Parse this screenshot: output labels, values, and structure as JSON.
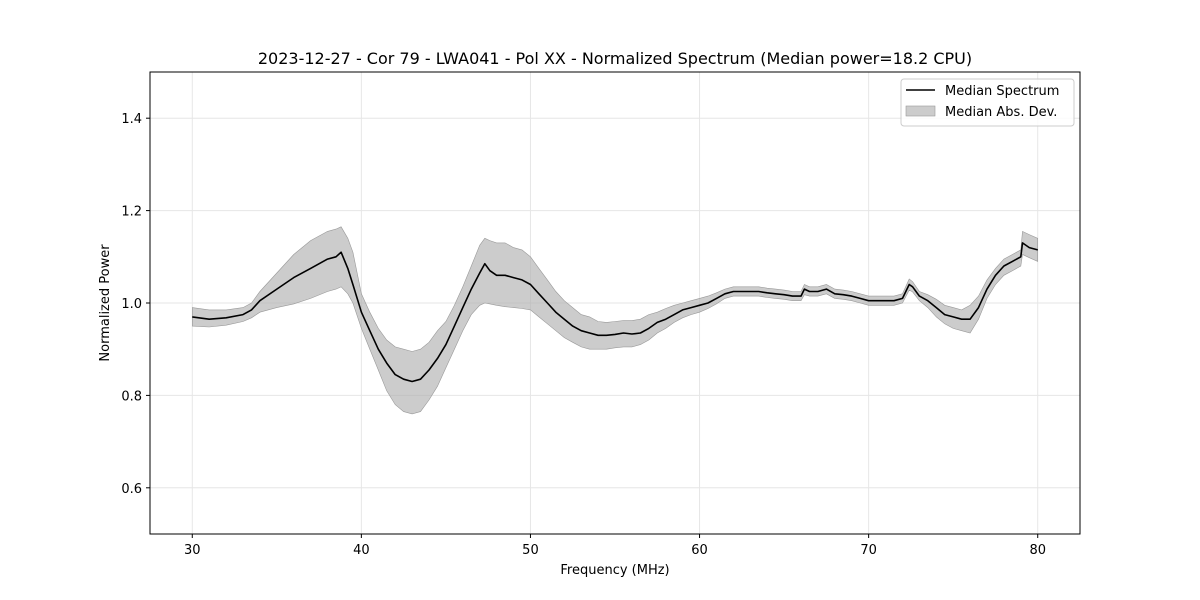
{
  "chart_data": {
    "type": "line",
    "title": "2023-12-27 - Cor 79 - LWA041 - Pol XX - Normalized Spectrum (Median power=18.2 CPU)",
    "xlabel": "Frequency (MHz)",
    "ylabel": "Normalized Power",
    "xlim": [
      27.5,
      82.5
    ],
    "ylim": [
      0.5,
      1.5
    ],
    "xticks": [
      30,
      40,
      50,
      60,
      70,
      80
    ],
    "xtick_labels": [
      "30",
      "40",
      "50",
      "60",
      "70",
      "80"
    ],
    "yticks": [
      0.6,
      0.8,
      1.0,
      1.2,
      1.4
    ],
    "ytick_labels": [
      "0.6",
      "0.8",
      "1.0",
      "1.2",
      "1.4"
    ],
    "grid": true,
    "legend_position": "top-right",
    "colors": {
      "median_line": "#000000",
      "mad_fill": "#b0b0b0",
      "grid": "#e6e6e6",
      "frame": "#000000"
    },
    "series": [
      {
        "name": "Median Spectrum",
        "kind": "line",
        "x": [
          30,
          31,
          32,
          33,
          33.5,
          34,
          35,
          36,
          37,
          38,
          38.5,
          38.8,
          39.2,
          39.5,
          40,
          40.5,
          41,
          41.5,
          42,
          42.5,
          43,
          43.5,
          44,
          44.5,
          45,
          45.5,
          46,
          46.5,
          47,
          47.3,
          47.6,
          48,
          48.5,
          49,
          49.5,
          50,
          50.5,
          51,
          51.5,
          52,
          52.5,
          53,
          53.5,
          54,
          54.5,
          55,
          55.5,
          56,
          56.5,
          57,
          57.5,
          58,
          58.5,
          59,
          59.5,
          60,
          60.5,
          61,
          61.5,
          62,
          62.5,
          63,
          63.5,
          64,
          64.5,
          65,
          65.5,
          66,
          66.2,
          66.5,
          67,
          67.5,
          68,
          68.5,
          69,
          69.5,
          70,
          70.5,
          71,
          71.5,
          72,
          72.4,
          72.6,
          73,
          73.5,
          74,
          74.5,
          75,
          75.5,
          76,
          76.5,
          77,
          77.5,
          78,
          78.5,
          79,
          79.1,
          79.5,
          80
        ],
        "values": [
          0.97,
          0.965,
          0.968,
          0.975,
          0.985,
          1.005,
          1.03,
          1.055,
          1.075,
          1.095,
          1.1,
          1.11,
          1.075,
          1.04,
          0.98,
          0.94,
          0.9,
          0.87,
          0.845,
          0.835,
          0.83,
          0.835,
          0.855,
          0.88,
          0.91,
          0.95,
          0.99,
          1.03,
          1.065,
          1.085,
          1.07,
          1.06,
          1.06,
          1.055,
          1.05,
          1.04,
          1.02,
          1.0,
          0.98,
          0.965,
          0.95,
          0.94,
          0.935,
          0.93,
          0.93,
          0.932,
          0.935,
          0.933,
          0.935,
          0.945,
          0.958,
          0.965,
          0.975,
          0.985,
          0.99,
          0.995,
          1.0,
          1.01,
          1.02,
          1.025,
          1.025,
          1.025,
          1.025,
          1.022,
          1.02,
          1.018,
          1.015,
          1.015,
          1.03,
          1.025,
          1.025,
          1.03,
          1.02,
          1.018,
          1.015,
          1.01,
          1.005,
          1.005,
          1.005,
          1.005,
          1.01,
          1.04,
          1.035,
          1.015,
          1.005,
          0.99,
          0.975,
          0.97,
          0.965,
          0.965,
          0.99,
          1.03,
          1.06,
          1.08,
          1.09,
          1.1,
          1.13,
          1.12,
          1.115
        ]
      },
      {
        "name": "Median Abs. Dev.",
        "kind": "band",
        "x": [
          30,
          31,
          32,
          33,
          33.5,
          34,
          35,
          36,
          37,
          38,
          38.5,
          38.8,
          39.2,
          39.5,
          40,
          40.5,
          41,
          41.5,
          42,
          42.5,
          43,
          43.5,
          44,
          44.5,
          45,
          45.5,
          46,
          46.5,
          47,
          47.3,
          47.6,
          48,
          48.5,
          49,
          49.5,
          50,
          50.5,
          51,
          51.5,
          52,
          52.5,
          53,
          53.5,
          54,
          54.5,
          55,
          55.5,
          56,
          56.5,
          57,
          57.5,
          58,
          58.5,
          59,
          59.5,
          60,
          60.5,
          61,
          61.5,
          62,
          62.5,
          63,
          63.5,
          64,
          64.5,
          65,
          65.5,
          66,
          66.2,
          66.5,
          67,
          67.5,
          68,
          68.5,
          69,
          69.5,
          70,
          70.5,
          71,
          71.5,
          72,
          72.4,
          72.6,
          73,
          73.5,
          74,
          74.5,
          75,
          75.5,
          76,
          76.5,
          77,
          77.5,
          78,
          78.5,
          79,
          79.1,
          79.5,
          80
        ],
        "lower": [
          0.95,
          0.948,
          0.952,
          0.96,
          0.968,
          0.98,
          0.99,
          0.998,
          1.01,
          1.025,
          1.03,
          1.035,
          1.02,
          1.0,
          0.945,
          0.9,
          0.855,
          0.81,
          0.78,
          0.765,
          0.76,
          0.765,
          0.79,
          0.82,
          0.86,
          0.9,
          0.94,
          0.975,
          0.995,
          1.0,
          0.998,
          0.995,
          0.992,
          0.99,
          0.988,
          0.985,
          0.97,
          0.955,
          0.94,
          0.925,
          0.915,
          0.905,
          0.9,
          0.9,
          0.9,
          0.903,
          0.905,
          0.905,
          0.91,
          0.92,
          0.935,
          0.945,
          0.958,
          0.968,
          0.975,
          0.98,
          0.988,
          0.998,
          1.01,
          1.015,
          1.015,
          1.015,
          1.015,
          1.012,
          1.01,
          1.008,
          1.005,
          1.005,
          1.018,
          1.015,
          1.015,
          1.02,
          1.01,
          1.008,
          1.005,
          1.0,
          0.995,
          0.995,
          0.995,
          0.995,
          1.0,
          1.028,
          1.024,
          1.005,
          0.99,
          0.97,
          0.955,
          0.945,
          0.94,
          0.935,
          0.965,
          1.01,
          1.04,
          1.06,
          1.07,
          1.08,
          1.105,
          1.098,
          1.09
        ],
        "upper": [
          0.99,
          0.985,
          0.985,
          0.99,
          1.0,
          1.025,
          1.065,
          1.105,
          1.135,
          1.155,
          1.16,
          1.165,
          1.14,
          1.11,
          1.02,
          0.98,
          0.945,
          0.92,
          0.905,
          0.9,
          0.895,
          0.9,
          0.915,
          0.94,
          0.96,
          0.995,
          1.035,
          1.08,
          1.125,
          1.14,
          1.135,
          1.13,
          1.13,
          1.12,
          1.115,
          1.1,
          1.075,
          1.05,
          1.025,
          1.005,
          0.99,
          0.975,
          0.97,
          0.96,
          0.958,
          0.96,
          0.962,
          0.962,
          0.965,
          0.975,
          0.98,
          0.988,
          0.995,
          1.0,
          1.005,
          1.01,
          1.015,
          1.022,
          1.03,
          1.035,
          1.035,
          1.035,
          1.035,
          1.032,
          1.03,
          1.028,
          1.025,
          1.025,
          1.04,
          1.035,
          1.035,
          1.04,
          1.03,
          1.028,
          1.025,
          1.02,
          1.015,
          1.015,
          1.015,
          1.015,
          1.02,
          1.052,
          1.046,
          1.025,
          1.018,
          1.008,
          0.995,
          0.99,
          0.985,
          0.995,
          1.015,
          1.05,
          1.075,
          1.095,
          1.105,
          1.115,
          1.155,
          1.148,
          1.14
        ]
      }
    ]
  }
}
